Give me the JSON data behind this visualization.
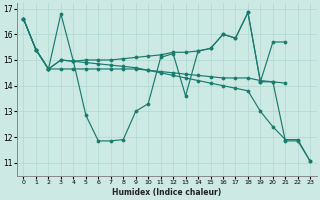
{
  "xlabel": "Humidex (Indice chaleur)",
  "bg_color": "#cce9e4",
  "line_color": "#1a7a6e",
  "grid_color": "#b0d8d0",
  "ylim": [
    10.5,
    17.2
  ],
  "xlim": [
    -0.5,
    23.5
  ],
  "yticks": [
    11,
    12,
    13,
    14,
    15,
    16,
    17
  ],
  "xticks": [
    0,
    1,
    2,
    3,
    4,
    5,
    6,
    7,
    8,
    9,
    10,
    11,
    12,
    13,
    14,
    15,
    16,
    17,
    18,
    19,
    20,
    21,
    22,
    23
  ],
  "series": [
    {
      "x": [
        0,
        1,
        2,
        3,
        4,
        5,
        6,
        7,
        8,
        9,
        10,
        11,
        12,
        13,
        14,
        15,
        16,
        17,
        18,
        19,
        20,
        21,
        22,
        23
      ],
      "y": [
        16.6,
        15.4,
        14.65,
        16.8,
        14.95,
        12.85,
        11.85,
        11.85,
        11.9,
        13.0,
        13.3,
        15.1,
        15.25,
        13.6,
        15.35,
        15.45,
        16.0,
        15.85,
        16.85,
        14.15,
        14.15,
        11.85,
        11.85,
        11.05
      ]
    },
    {
      "x": [
        0,
        1,
        2,
        3,
        4,
        5,
        6,
        7,
        8,
        9,
        10,
        11,
        12,
        13,
        14,
        15,
        16,
        17,
        18,
        19,
        20,
        21
      ],
      "y": [
        16.6,
        15.4,
        14.65,
        15.0,
        14.95,
        15.0,
        15.0,
        15.0,
        15.05,
        15.1,
        15.15,
        15.2,
        15.3,
        15.3,
        15.35,
        15.45,
        16.0,
        15.85,
        16.85,
        14.15,
        15.7,
        15.7
      ]
    },
    {
      "x": [
        0,
        1,
        2,
        3,
        4,
        5,
        6,
        7,
        8,
        9,
        10,
        11,
        12,
        13,
        14,
        15,
        16,
        17,
        18,
        19,
        20,
        21
      ],
      "y": [
        16.6,
        15.4,
        14.65,
        14.65,
        14.65,
        14.65,
        14.65,
        14.65,
        14.65,
        14.65,
        14.6,
        14.55,
        14.5,
        14.45,
        14.4,
        14.35,
        14.3,
        14.3,
        14.3,
        14.2,
        14.15,
        14.1
      ]
    },
    {
      "x": [
        0,
        1,
        2,
        3,
        4,
        5,
        6,
        7,
        8,
        9,
        10,
        11,
        12,
        13,
        14,
        15,
        16,
        17,
        18,
        19,
        20,
        21,
        22,
        23
      ],
      "y": [
        16.6,
        15.4,
        14.65,
        15.0,
        14.95,
        14.9,
        14.85,
        14.8,
        14.75,
        14.7,
        14.6,
        14.5,
        14.4,
        14.3,
        14.2,
        14.1,
        14.0,
        13.9,
        13.8,
        13.0,
        12.4,
        11.9,
        11.9,
        11.05
      ]
    }
  ]
}
